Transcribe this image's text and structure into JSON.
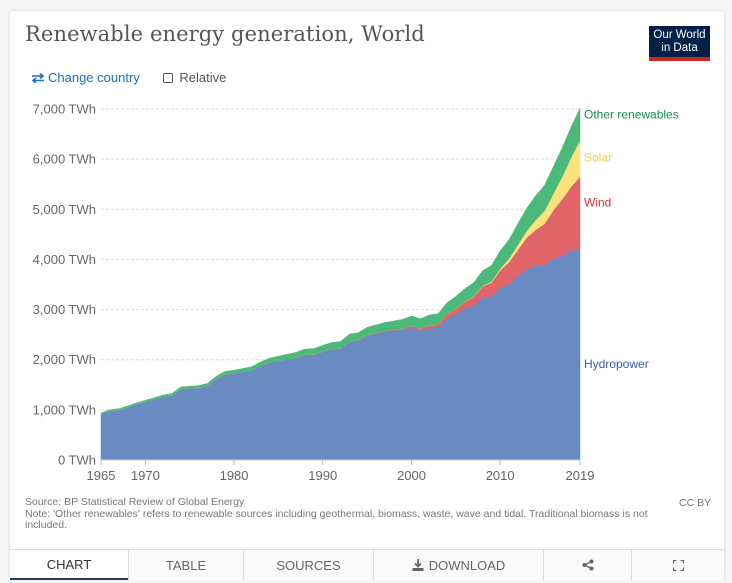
{
  "title": "Renewable energy generation, World",
  "logo": {
    "line1": "Our World",
    "line2": "in Data"
  },
  "controls": {
    "change_country": "Change country",
    "relative": "Relative",
    "relative_checked": false
  },
  "footer": {
    "source": "Source: BP Statistical Review of Global Energy",
    "note": "Note: 'Other renewables' refers to renewable sources including geothermal, biomass, waste, wave and tidal. Traditional biomass is not included.",
    "license": "CC BY"
  },
  "tabs": [
    {
      "label": "CHART",
      "active": true
    },
    {
      "label": "TABLE",
      "active": false
    },
    {
      "label": "SOURCES",
      "active": false
    },
    {
      "label": "DOWNLOAD",
      "icon": "download-icon",
      "active": false
    },
    {
      "label": "",
      "icon": "share-icon",
      "active": false
    },
    {
      "label": "",
      "icon": "fullscreen-icon",
      "active": false
    }
  ],
  "chart_data": {
    "type": "area",
    "stacked": true,
    "title": "Renewable energy generation, World",
    "xlabel": "",
    "ylabel": "",
    "unit": "TWh",
    "xlim": [
      1965,
      2019
    ],
    "ylim": [
      0,
      7000
    ],
    "grid": true,
    "legend": "right-inline",
    "x_ticks": [
      "1965",
      "1970",
      "1980",
      "1990",
      "2000",
      "2010",
      "2019"
    ],
    "y_ticks": [
      "0 TWh",
      "1,000 TWh",
      "2,000 TWh",
      "3,000 TWh",
      "4,000 TWh",
      "5,000 TWh",
      "6,000 TWh",
      "7,000 TWh"
    ],
    "x": [
      1965,
      1966,
      1967,
      1968,
      1969,
      1970,
      1971,
      1972,
      1973,
      1974,
      1975,
      1976,
      1977,
      1978,
      1979,
      1980,
      1981,
      1982,
      1983,
      1984,
      1985,
      1986,
      1987,
      1988,
      1989,
      1990,
      1991,
      1992,
      1993,
      1994,
      1995,
      1996,
      1997,
      1998,
      1999,
      2000,
      2001,
      2002,
      2003,
      2004,
      2005,
      2006,
      2007,
      2008,
      2009,
      2010,
      2011,
      2012,
      2013,
      2014,
      2015,
      2016,
      2017,
      2018,
      2019
    ],
    "series": [
      {
        "name": "Hydropower",
        "color": "#6a8bc2",
        "values": [
          920,
          980,
          1000,
          1050,
          1110,
          1160,
          1210,
          1260,
          1290,
          1420,
          1430,
          1440,
          1480,
          1620,
          1710,
          1730,
          1760,
          1790,
          1880,
          1950,
          1980,
          2010,
          2040,
          2100,
          2100,
          2160,
          2210,
          2220,
          2360,
          2380,
          2480,
          2520,
          2560,
          2580,
          2600,
          2650,
          2580,
          2630,
          2640,
          2820,
          2910,
          3020,
          3080,
          3240,
          3260,
          3440,
          3510,
          3670,
          3800,
          3880,
          3880,
          4020,
          4070,
          4180,
          4220
        ]
      },
      {
        "name": "Wind",
        "color": "#e06468",
        "values": [
          0,
          0,
          0,
          0,
          0,
          0,
          0,
          0,
          0,
          0,
          0,
          0,
          0,
          0,
          0,
          0,
          0,
          0,
          0,
          0,
          0,
          1,
          2,
          3,
          3,
          4,
          4,
          5,
          6,
          7,
          8,
          10,
          12,
          16,
          21,
          31,
          38,
          52,
          63,
          85,
          104,
          133,
          171,
          220,
          276,
          342,
          437,
          522,
          635,
          706,
          831,
          959,
          1134,
          1270,
          1430
        ]
      },
      {
        "name": "Solar",
        "color": "#fbe27c",
        "values": [
          0,
          0,
          0,
          0,
          0,
          0,
          0,
          0,
          0,
          0,
          0,
          0,
          0,
          0,
          0,
          0,
          0,
          0,
          0,
          0,
          0,
          0,
          0,
          0,
          0,
          0,
          0,
          0,
          0,
          0,
          0,
          0,
          0,
          1,
          1,
          1,
          1,
          2,
          2,
          3,
          4,
          6,
          8,
          12,
          21,
          34,
          65,
          100,
          137,
          199,
          256,
          333,
          447,
          584,
          724
        ]
      },
      {
        "name": "Other renewables",
        "color": "#4cb87a",
        "values": [
          20,
          22,
          24,
          26,
          28,
          30,
          32,
          34,
          36,
          38,
          40,
          44,
          48,
          52,
          56,
          60,
          64,
          70,
          76,
          82,
          90,
          98,
          104,
          110,
          118,
          124,
          130,
          136,
          144,
          150,
          156,
          164,
          170,
          176,
          182,
          190,
          196,
          206,
          214,
          228,
          244,
          258,
          276,
          302,
          320,
          356,
          384,
          420,
          452,
          484,
          512,
          540,
          580,
          610,
          640
        ]
      }
    ],
    "label_colors": {
      "Hydropower": "#3d5ba9",
      "Wind": "#d3333f",
      "Solar": "#f9cf46",
      "Other renewables": "#1a8c4b"
    }
  }
}
